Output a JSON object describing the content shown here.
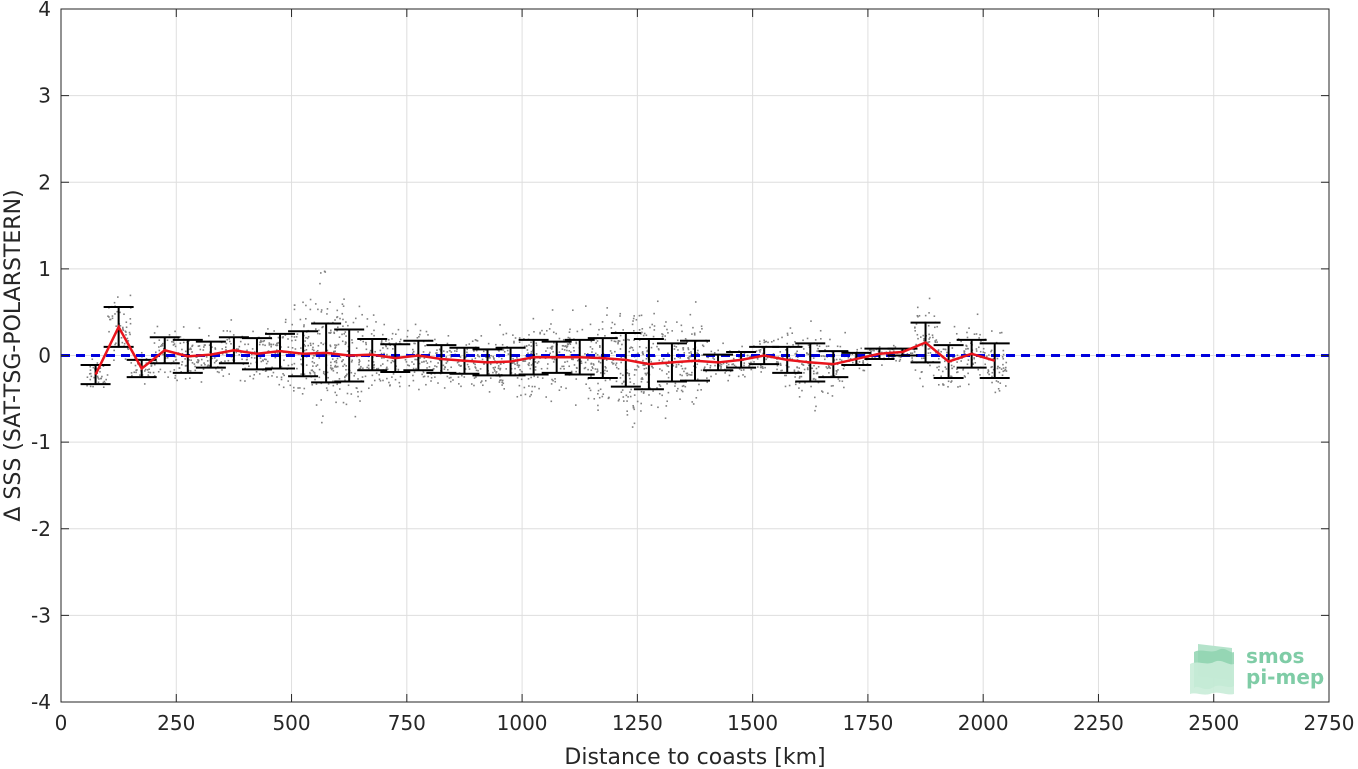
{
  "chart_data": {
    "type": "scatter",
    "xlabel": "Distance to coasts [km]",
    "ylabel": "Δ SSS (SAT-TSG-POLARSTERN)",
    "xlim": [
      0,
      2750
    ],
    "ylim": [
      -4,
      4
    ],
    "xticks": [
      0,
      250,
      500,
      750,
      1000,
      1250,
      1500,
      1750,
      2000,
      2250,
      2500,
      2750
    ],
    "yticks": [
      -4,
      -3,
      -2,
      -1,
      0,
      1,
      2,
      3,
      4
    ],
    "grid": true,
    "reference_line": {
      "y": 0,
      "style": "dashed",
      "color": "#0000dd"
    },
    "colors": {
      "scatter": "#808080",
      "mean": "#e8141c",
      "errorbars": "#000000"
    },
    "bins": {
      "x": [
        75,
        125,
        175,
        225,
        275,
        325,
        375,
        425,
        475,
        525,
        575,
        625,
        675,
        725,
        775,
        825,
        875,
        925,
        975,
        1025,
        1075,
        1125,
        1175,
        1225,
        1275,
        1325,
        1375,
        1425,
        1475,
        1525,
        1575,
        1625,
        1675,
        1725,
        1775,
        1825,
        1875,
        1925,
        1975,
        2025
      ],
      "mean": [
        -0.22,
        0.33,
        -0.15,
        0.06,
        -0.01,
        0.01,
        0.06,
        0.02,
        0.05,
        0.02,
        0.03,
        0.0,
        0.01,
        -0.03,
        0.0,
        -0.04,
        -0.06,
        -0.08,
        -0.07,
        -0.02,
        -0.02,
        -0.02,
        -0.03,
        -0.05,
        -0.1,
        -0.08,
        -0.06,
        -0.08,
        -0.05,
        0.0,
        -0.05,
        -0.08,
        -0.1,
        -0.04,
        0.02,
        0.04,
        0.15,
        -0.07,
        0.02,
        -0.06
      ],
      "std": [
        0.11,
        0.23,
        0.1,
        0.15,
        0.19,
        0.15,
        0.15,
        0.18,
        0.2,
        0.26,
        0.34,
        0.3,
        0.18,
        0.16,
        0.17,
        0.16,
        0.15,
        0.15,
        0.16,
        0.2,
        0.18,
        0.2,
        0.23,
        0.31,
        0.29,
        0.22,
        0.23,
        0.09,
        0.09,
        0.1,
        0.15,
        0.22,
        0.15,
        0.07,
        0.06,
        0.04,
        0.23,
        0.19,
        0.16,
        0.2
      ]
    },
    "scatter_envelope": {
      "note": "grey scatter points drawn around bin means with this per-bin spread",
      "x": [
        75,
        125,
        175,
        225,
        275,
        325,
        375,
        425,
        475,
        525,
        575,
        625,
        675,
        725,
        775,
        825,
        875,
        925,
        975,
        1025,
        1075,
        1125,
        1175,
        1225,
        1275,
        1325,
        1375,
        1425,
        1475,
        1525,
        1575,
        1625,
        1675,
        1725,
        1775,
        1825,
        1875,
        1925,
        1975,
        2025
      ],
      "spread": [
        0.15,
        0.3,
        0.15,
        0.25,
        0.3,
        0.25,
        0.25,
        0.3,
        0.35,
        0.5,
        0.7,
        0.55,
        0.35,
        0.3,
        0.3,
        0.3,
        0.3,
        0.3,
        0.35,
        0.4,
        0.35,
        0.4,
        0.45,
        0.6,
        0.55,
        0.45,
        0.45,
        0.15,
        0.15,
        0.2,
        0.35,
        0.4,
        0.3,
        0.12,
        0.1,
        0.1,
        0.35,
        0.3,
        0.3,
        0.3
      ]
    }
  },
  "logo": {
    "line1": "smos",
    "line2": "pi-mep"
  }
}
